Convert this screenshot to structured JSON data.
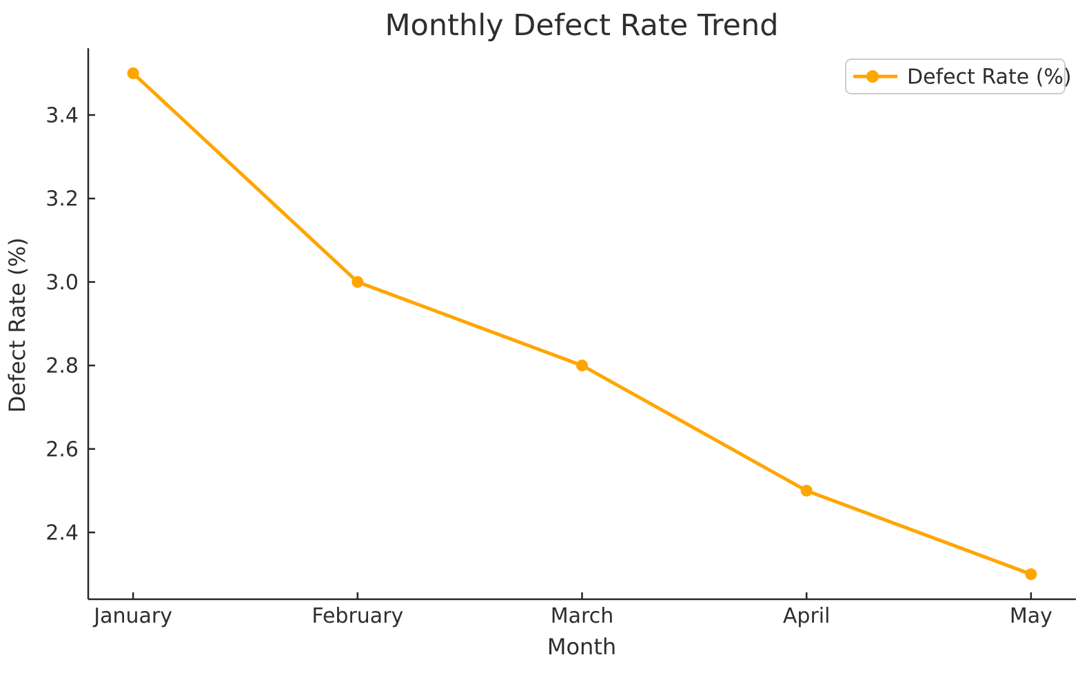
{
  "figure": {
    "background": "#ffffff",
    "axis_color": "#262626",
    "text_color": "#2e2e2e"
  },
  "chart_data": {
    "type": "line",
    "title": "Monthly Defect Rate Trend",
    "xlabel": "Month",
    "ylabel": "Defect Rate (%)",
    "categories": [
      "January",
      "February",
      "March",
      "April",
      "May"
    ],
    "series": [
      {
        "name": "Defect Rate (%)",
        "values": [
          3.5,
          3.0,
          2.8,
          2.5,
          2.3
        ],
        "color": "#FFA500",
        "marker": "circle"
      }
    ],
    "y_ticks": [
      3.4,
      3.2,
      3.0,
      2.8,
      2.6,
      2.4
    ],
    "y_tick_labels": [
      "3.4",
      "3.2",
      "3.0",
      "2.8",
      "2.6",
      "2.4"
    ],
    "ylim": [
      2.24,
      3.56
    ],
    "xlim": [
      -0.2,
      4.2
    ],
    "grid": false,
    "legend": {
      "position": "upper right",
      "entries": [
        "Defect Rate (%)"
      ]
    }
  }
}
